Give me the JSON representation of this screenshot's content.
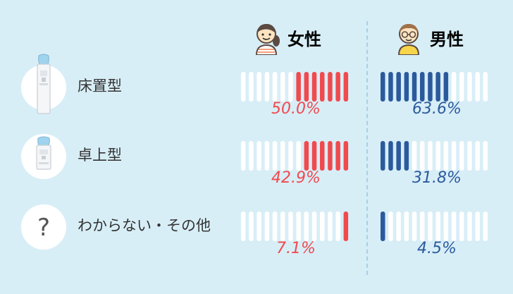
{
  "colors": {
    "female": "#f04a4e",
    "male": "#2b5a9c",
    "bar_empty": "#ffffff",
    "background": "#d8eef7"
  },
  "header": {
    "female_label": "女性",
    "male_label": "男性",
    "female_icon": "girl-face-icon",
    "male_icon": "boy-glasses-face-icon"
  },
  "chart_data": {
    "type": "bar",
    "segments_per_bar": 14,
    "categories": [
      "床置型",
      "卓上型",
      "わからない・その他"
    ],
    "category_icons": [
      "floor-water-server-icon",
      "tabletop-water-server-icon",
      "question-mark-icon"
    ],
    "series": [
      {
        "name": "女性",
        "values": [
          50.0,
          42.9,
          7.1
        ],
        "labels": [
          "50.0%",
          "42.9%",
          "7.1%"
        ]
      },
      {
        "name": "男性",
        "values": [
          63.6,
          31.8,
          4.5
        ],
        "labels": [
          "63.6%",
          "31.8%",
          "4.5%"
        ]
      }
    ],
    "ylim": [
      0,
      100
    ]
  }
}
